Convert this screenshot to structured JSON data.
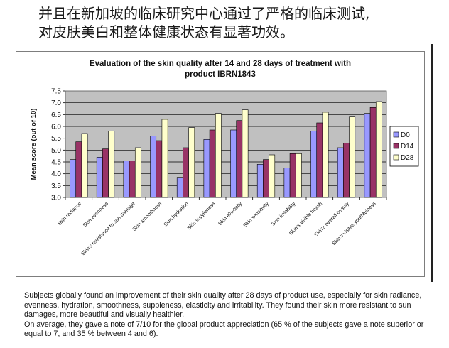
{
  "headline": {
    "line1": "并且在新加坡的临床研究中心通过了严格的临床测试,",
    "line2": "对皮肤美白和整体健康状态有显著功效。"
  },
  "caption": {
    "p1": "Subjects globally found an improvement of their skin quality after 28 days of product use, especially for skin radiance, evenness, hydration, smoothness, suppleness, elasticity and irritability. They found their skin more resistant to sun damages, more beautiful and visually healthier.",
    "p2": "On average, they gave a note of 7/10 for the global product appreciation (65 % of the subjects gave a note superior or equal to 7, and 35 % between 4 and 6)."
  },
  "colors": {
    "plot_bg": "#c0c0c0",
    "D0": "#9999ff",
    "D14": "#993366",
    "D28": "#ffffcc"
  },
  "chart_data": {
    "type": "bar",
    "title_line1": "Evaluation of the skin quality after 14 and 28 days of treatment with",
    "title_line2": "product IBRN1843",
    "ylabel": "Mean score (out of 10)",
    "xlabel": "",
    "ylim": [
      3.0,
      7.5
    ],
    "yticks": [
      "3.0",
      "3.5",
      "4.0",
      "4.5",
      "5.0",
      "5.5",
      "6.0",
      "6.5",
      "7.0",
      "7.5"
    ],
    "grid": true,
    "legend_position": "right",
    "categories": [
      "Skin radiance",
      "Skin evenness",
      "Skin's resistance to sun damage",
      "Skin smoothness",
      "Skin hydration",
      "Skin suppleness",
      "Skin elasticity",
      "Skin sensitivity",
      "Skin irritability",
      "Skin's visible health",
      "Skin's overall beauty",
      "Skin's visible youthfulness"
    ],
    "series": [
      {
        "name": "D0",
        "values": [
          4.6,
          4.7,
          4.55,
          5.6,
          3.85,
          5.45,
          5.85,
          4.4,
          4.25,
          5.8,
          5.1,
          6.55
        ]
      },
      {
        "name": "D14",
        "values": [
          5.35,
          5.05,
          4.55,
          5.4,
          5.1,
          5.85,
          6.25,
          4.6,
          4.85,
          6.15,
          5.3,
          6.8
        ]
      },
      {
        "name": "D28",
        "values": [
          5.7,
          5.8,
          5.1,
          6.3,
          5.95,
          6.55,
          6.7,
          4.8,
          4.85,
          6.6,
          6.4,
          7.05
        ]
      }
    ]
  }
}
